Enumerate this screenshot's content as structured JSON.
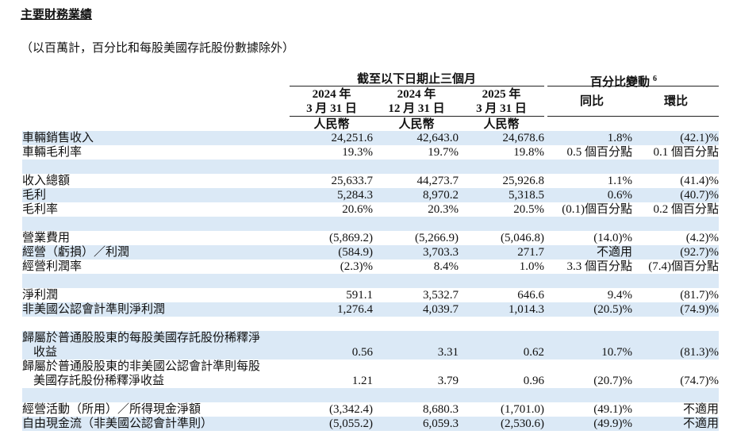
{
  "header": {
    "title": "主要財務業績",
    "subtitle": "（以百萬計，百分比和每股美國存託股份數據除外）"
  },
  "table": {
    "group_headers": [
      {
        "text": "截至以下日期止三個月"
      },
      {
        "text": "百分比變動",
        "note": "6"
      }
    ],
    "columns": [
      [
        "2024 年",
        "3 月 31 日",
        "人民幣"
      ],
      [
        "2024 年",
        "12 月 31 日",
        "人民幣"
      ],
      [
        "2025 年",
        "3 月 31 日",
        "人民幣"
      ],
      [
        "同比"
      ],
      [
        "環比"
      ]
    ],
    "sections": [
      [
        {
          "label": [
            "車輛銷售收入"
          ],
          "values": [
            "24,251.6",
            "42,643.0",
            "24,678.6",
            "1.8%",
            "(42.1)%"
          ]
        },
        {
          "label": [
            "車輛毛利率"
          ],
          "values": [
            "19.3%",
            "19.7%",
            "19.8%",
            "0.5 個百分點",
            "0.1 個百分點"
          ]
        }
      ],
      [
        {
          "label": [
            "收入總額"
          ],
          "values": [
            "25,633.7",
            "44,273.7",
            "25,926.8",
            "1.1%",
            "(41.4)%"
          ]
        },
        {
          "label": [
            "毛利"
          ],
          "values": [
            "5,284.3",
            "8,970.2",
            "5,318.5",
            "0.6%",
            "(40.7)%"
          ]
        },
        {
          "label": [
            "毛利率"
          ],
          "values": [
            "20.6%",
            "20.3%",
            "20.5%",
            "(0.1)個百分點",
            "0.2 個百分點"
          ]
        }
      ],
      [
        {
          "label": [
            "營業費用"
          ],
          "values": [
            "(5,869.2)",
            "(5,266.9)",
            "(5,046.8)",
            "(14.0)%",
            "(4.2)%"
          ]
        },
        {
          "label": [
            "經營（虧損）／利潤"
          ],
          "values": [
            "(584.9)",
            "3,703.3",
            "271.7",
            "不適用",
            "(92.7)%"
          ]
        },
        {
          "label": [
            "經營利潤率"
          ],
          "values": [
            "(2.3)%",
            "8.4%",
            "1.0%",
            "3.3 個百分點",
            "(7.4)個百分點"
          ]
        }
      ],
      [
        {
          "label": [
            "淨利潤"
          ],
          "values": [
            "591.1",
            "3,532.7",
            "646.6",
            "9.4%",
            "(81.7)%"
          ]
        },
        {
          "label": [
            "非美國公認會計準則淨利潤"
          ],
          "values": [
            "1,276.4",
            "4,039.7",
            "1,014.3",
            "(20.5)%",
            "(74.9)%"
          ]
        }
      ],
      [
        {
          "label": [
            "歸屬於普通股股東的每股美國存託股份稀釋淨",
            "收益"
          ],
          "values": [
            "0.56",
            "3.31",
            "0.62",
            "10.7%",
            "(81.3)%"
          ]
        },
        {
          "label": [
            "歸屬於普通股股東的非美國公認會計準則每股",
            "美國存託股份稀釋淨收益"
          ],
          "values": [
            "1.21",
            "3.79",
            "0.96",
            "(20.7)%",
            "(74.7)%"
          ]
        }
      ],
      [
        {
          "label": [
            "經營活動（所用）／所得現金淨額"
          ],
          "values": [
            "(3,342.4)",
            "8,680.3",
            "(1,701.0)",
            "(49.1)%",
            "不適用"
          ]
        },
        {
          "label": [
            "自由現金流（非美國公認會計準則）"
          ],
          "values": [
            "(5,055.2)",
            "6,059.3",
            "(2,530.6)",
            "(49.9)%",
            "不適用"
          ]
        }
      ]
    ]
  }
}
